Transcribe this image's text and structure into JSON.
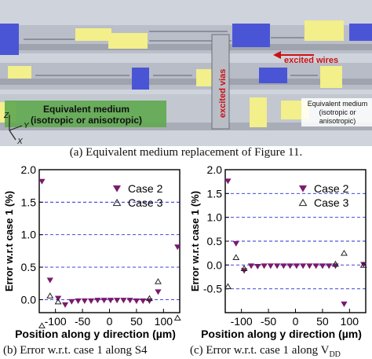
{
  "figure_a": {
    "labels": {
      "excited_wires": "excited wires",
      "excited_vias": "excited vias",
      "medium_main_line1": "Equivalent medium",
      "medium_main_line2": "(isotropic or anisotropic)",
      "medium_small_line1": "Equivalent medium",
      "medium_small_line2": "(isotropic or",
      "medium_small_line3": "anisotropic)",
      "axis_z": "Z",
      "axis_y": "Y",
      "axis_x": "X"
    },
    "colors": {
      "background": "#cfd3dc",
      "wire_gray": "#a9adb8",
      "yellow": "#f3ef8a",
      "blue": "#4a55d6",
      "green_medium": "#5fa84f",
      "arrow_red": "#cc1111"
    },
    "caption": "(a) Equivalent medium replacement of Figure 11."
  },
  "chart_data": [
    {
      "type": "scatter",
      "panel": "b",
      "caption": "(b) Error w.r.t. case 1 along S4",
      "xlabel": "Position along y direction (µm)",
      "ylabel": "Error w.r.t case 1 (%)",
      "xlim": [
        -130,
        130
      ],
      "ylim": [
        -0.2,
        2.0
      ],
      "xticks": [
        -100,
        -50,
        0,
        50,
        100
      ],
      "xtick_labels": [
        "-100",
        "-50",
        "0",
        "50",
        "100"
      ],
      "yticks": [
        -0.0,
        0.5,
        1.0,
        1.5,
        2.0
      ],
      "ytick_labels": [
        "0.0",
        "0.5",
        "1.0",
        "1.5",
        "2.0"
      ],
      "grid": "horizontal dashed",
      "legend_position": "top-right",
      "series": [
        {
          "name": "Case 2",
          "marker": "filled-down-triangle",
          "color": "#7a1a6e",
          "x": [
            -125,
            -110,
            -95,
            -82,
            -70,
            -58,
            -46,
            -34,
            -22,
            -10,
            2,
            14,
            26,
            38,
            50,
            62,
            74,
            90,
            126
          ],
          "y": [
            1.82,
            0.3,
            0.02,
            -0.08,
            -0.03,
            -0.02,
            -0.02,
            -0.02,
            -0.01,
            -0.01,
            -0.01,
            -0.01,
            -0.01,
            -0.01,
            -0.02,
            -0.02,
            -0.02,
            0.12,
            0.81
          ]
        },
        {
          "name": "Case 3",
          "marker": "open-up-triangle",
          "color": "#222222",
          "x": [
            -125,
            -110,
            -95,
            74,
            90,
            126
          ],
          "y": [
            -0.4,
            0.06,
            -0.03,
            0.02,
            0.28,
            -0.28
          ]
        }
      ]
    },
    {
      "type": "scatter",
      "panel": "c",
      "caption": "(c) Error w.r.t. case 1 along V",
      "caption_subscript": "DD",
      "xlabel": "Position along y direction (µm)",
      "ylabel": "Error w.r.t case 1 (%)",
      "xlim": [
        -130,
        130
      ],
      "ylim": [
        -1.0,
        2.0
      ],
      "xticks": [
        -100,
        -50,
        0,
        50,
        100
      ],
      "xtick_labels": [
        "-100",
        "-50",
        "0",
        "50",
        "100"
      ],
      "yticks": [
        -0.5,
        0.0,
        0.5,
        1.0,
        1.5,
        2.0
      ],
      "ytick_labels": [
        "-0.5",
        "0.0",
        "0.5",
        "1.0",
        "1.5",
        "2.0"
      ],
      "grid": "horizontal dashed",
      "legend_position": "top-right",
      "series": [
        {
          "name": "Case 2",
          "marker": "filled-down-triangle",
          "color": "#7a1a6e",
          "x": [
            -125,
            -110,
            -95,
            -82,
            -70,
            -58,
            -46,
            -34,
            -22,
            -10,
            2,
            14,
            26,
            38,
            50,
            62,
            74,
            90,
            126
          ],
          "y": [
            1.76,
            0.45,
            -0.12,
            -0.02,
            -0.03,
            -0.02,
            -0.02,
            -0.02,
            -0.02,
            -0.02,
            -0.02,
            -0.02,
            -0.02,
            -0.02,
            -0.02,
            -0.02,
            -0.02,
            -0.82,
            0.01
          ]
        },
        {
          "name": "Case 3",
          "marker": "open-up-triangle",
          "color": "#222222",
          "x": [
            -125,
            -110,
            -95,
            74,
            90,
            126
          ],
          "y": [
            -0.45,
            0.16,
            -0.07,
            0.02,
            0.25,
            0.0
          ]
        }
      ]
    }
  ]
}
